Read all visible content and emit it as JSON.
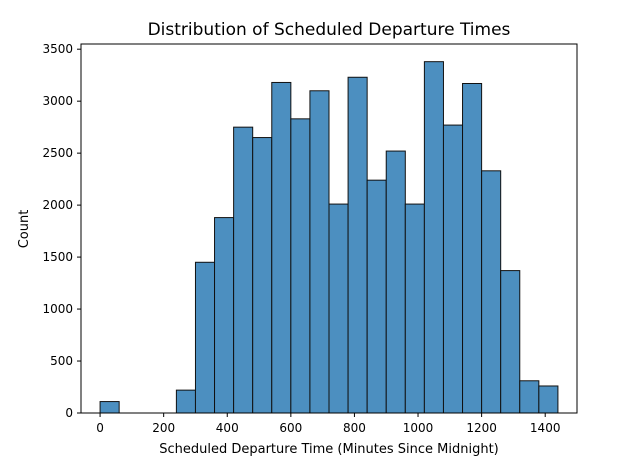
{
  "chart_data": {
    "type": "bar",
    "title": "Distribution of Scheduled Departure Times",
    "xlabel": "Scheduled Departure Time (Minutes Since Midnight)",
    "ylabel": "Count",
    "xlim": [
      -60,
      1500
    ],
    "ylim": [
      0,
      3550
    ],
    "xticks": [
      0,
      200,
      400,
      600,
      800,
      1000,
      1200,
      1400
    ],
    "yticks": [
      0,
      500,
      1000,
      1500,
      2000,
      2500,
      3000,
      3500
    ],
    "grid": false,
    "bins": [
      {
        "x0": 0,
        "x1": 60,
        "count": 110
      },
      {
        "x0": 60,
        "x1": 120,
        "count": 0
      },
      {
        "x0": 120,
        "x1": 180,
        "count": 0
      },
      {
        "x0": 180,
        "x1": 240,
        "count": 0
      },
      {
        "x0": 240,
        "x1": 300,
        "count": 220
      },
      {
        "x0": 300,
        "x1": 360,
        "count": 1450
      },
      {
        "x0": 360,
        "x1": 420,
        "count": 1880
      },
      {
        "x0": 420,
        "x1": 480,
        "count": 2750
      },
      {
        "x0": 480,
        "x1": 540,
        "count": 2650
      },
      {
        "x0": 540,
        "x1": 600,
        "count": 3180
      },
      {
        "x0": 600,
        "x1": 660,
        "count": 2830
      },
      {
        "x0": 660,
        "x1": 720,
        "count": 3100
      },
      {
        "x0": 720,
        "x1": 780,
        "count": 2010
      },
      {
        "x0": 780,
        "x1": 840,
        "count": 3230
      },
      {
        "x0": 840,
        "x1": 900,
        "count": 2240
      },
      {
        "x0": 900,
        "x1": 960,
        "count": 2520
      },
      {
        "x0": 960,
        "x1": 1020,
        "count": 2010
      },
      {
        "x0": 1020,
        "x1": 1080,
        "count": 3380
      },
      {
        "x0": 1080,
        "x1": 1140,
        "count": 2770
      },
      {
        "x0": 1140,
        "x1": 1200,
        "count": 3170
      },
      {
        "x0": 1200,
        "x1": 1260,
        "count": 2330
      },
      {
        "x0": 1260,
        "x1": 1320,
        "count": 1370
      },
      {
        "x0": 1320,
        "x1": 1380,
        "count": 310
      },
      {
        "x0": 1380,
        "x1": 1440,
        "count": 260
      }
    ],
    "bar_color": "#4c8fc0"
  }
}
